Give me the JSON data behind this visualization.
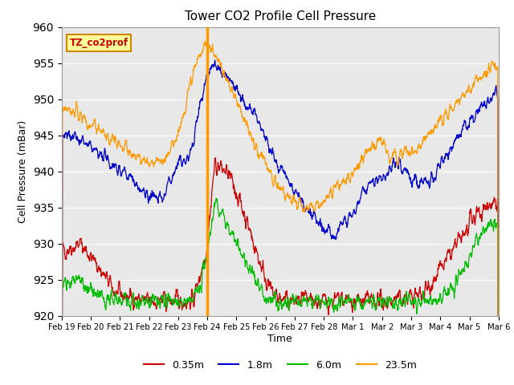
{
  "title": "Tower CO2 Profile Cell Pressure",
  "ylabel": "Cell Pressure (mBar)",
  "xlabel": "Time",
  "ylim": [
    920,
    960
  ],
  "bg_color": "#e8e8e8",
  "fig_color": "#ffffff",
  "grid_color": "#ffffff",
  "line_colors": {
    "0.35m": "#cc0000",
    "1.8m": "#0000cc",
    "6.0m": "#00bb00",
    "23.5m": "#ff9900"
  },
  "xtick_labels": [
    "Feb 19",
    "Feb 20",
    "Feb 21",
    "Feb 22",
    "Feb 23",
    "Feb 24",
    "Feb 25",
    "Feb 26",
    "Feb 27",
    "Feb 28",
    "Mar 1",
    "Mar 2",
    "Mar 3",
    "Mar 4",
    "Mar 5",
    "Mar 6"
  ],
  "vline_x": 5,
  "vline_color": "#ff9900",
  "legend_box_label": "TZ_co2prof",
  "legend_box_color": "#ffff99",
  "legend_box_edge": "#cc8800",
  "yticks": [
    920,
    925,
    930,
    935,
    940,
    945,
    950,
    955,
    960
  ]
}
